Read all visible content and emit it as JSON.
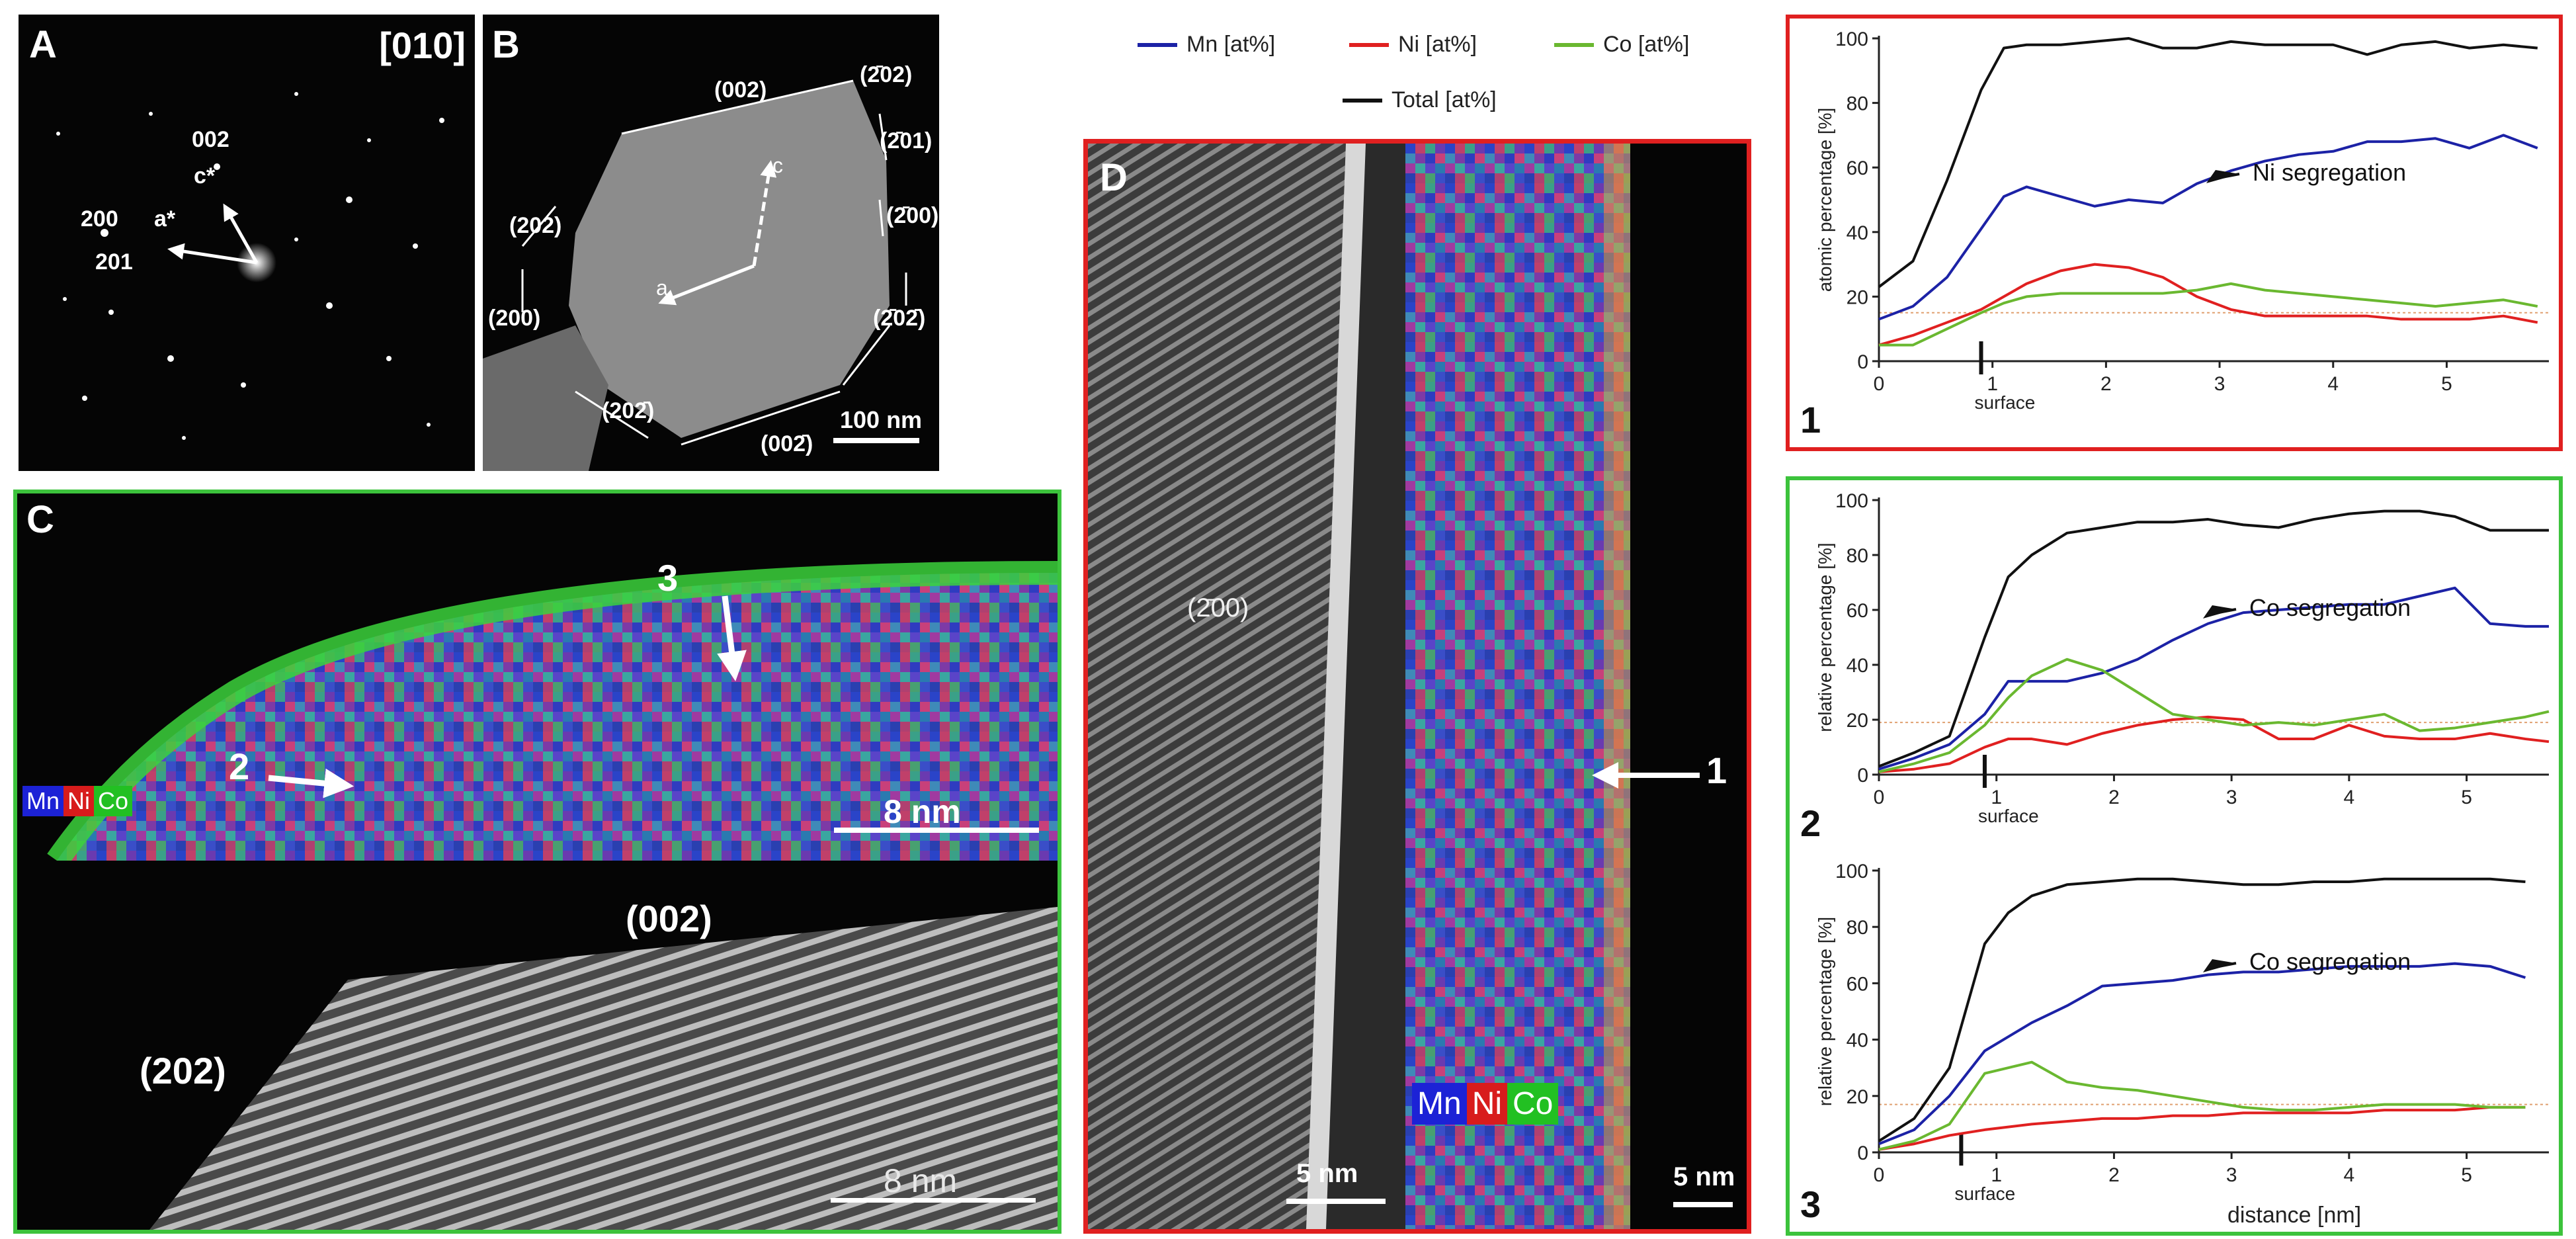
{
  "panel_a": {
    "label": "A",
    "zone_axis": "[010]",
    "spots": {
      "s002": "002",
      "s200": "200",
      "s201": "201"
    },
    "vectors": {
      "c_star": "c*",
      "a_star": "a*"
    }
  },
  "panel_b": {
    "label": "B",
    "facets": {
      "f002": "(002)",
      "f_202": "(2̄02)",
      "f_201": "(2̄01)",
      "f_200": "(2̄00)",
      "f_20_2": "(2̄02̄)",
      "f00_2": "(002̄)",
      "f20_2": "(202̄)",
      "f200": "(200)",
      "f202": "(202)"
    },
    "axes": {
      "a": "a",
      "c": "c"
    },
    "scalebar": "100 nm"
  },
  "panel_c": {
    "label": "C",
    "legend": {
      "mn": "Mn",
      "ni": "Ni",
      "co": "Co"
    },
    "markers": {
      "m2": "2",
      "m3": "3"
    },
    "scalebar_top": "8 nm",
    "facet_002": "(002)",
    "facet_202": "(202)",
    "scalebar_bottom": "8 nm"
  },
  "panel_d": {
    "label": "D",
    "facet": "(2̄00)",
    "scalebar_left": "5 nm",
    "marker": "1",
    "legend": {
      "mn": "Mn",
      "ni": "Ni",
      "co": "Co"
    },
    "scalebar_right": "5 nm"
  },
  "legend": {
    "mn": "Mn [at%]",
    "ni": "Ni [at%]",
    "co": "Co [at%]",
    "total": "Total [at%]"
  },
  "colors": {
    "mn": "#1c22a6",
    "ni": "#e02020",
    "co": "#6ab830",
    "total": "#111111",
    "red_frame": "#e02020",
    "green_frame": "#3cc33c"
  },
  "chart_data": [
    {
      "id": "1",
      "type": "line",
      "ylabel": "atomic percentage [%]",
      "xlabel": "",
      "annotation": "Ni segregation",
      "surface_label": "surface",
      "surface_x": 0.9,
      "xlim": [
        0,
        5.9
      ],
      "ylim": [
        0,
        100
      ],
      "xticks": [
        0,
        1,
        2,
        3,
        4,
        5
      ],
      "yticks": [
        0,
        20,
        40,
        60,
        80,
        100
      ],
      "reference_level": 15,
      "x": [
        0,
        0.3,
        0.6,
        0.9,
        1.1,
        1.3,
        1.6,
        1.9,
        2.2,
        2.5,
        2.8,
        3.1,
        3.4,
        3.7,
        4.0,
        4.3,
        4.6,
        4.9,
        5.2,
        5.5,
        5.8
      ],
      "series": [
        {
          "name": "Mn",
          "color": "mn",
          "values": [
            13,
            17,
            26,
            41,
            51,
            54,
            51,
            48,
            50,
            49,
            55,
            59,
            62,
            64,
            65,
            68,
            68,
            69,
            66,
            70,
            66
          ]
        },
        {
          "name": "Ni",
          "color": "ni",
          "values": [
            5,
            8,
            12,
            16,
            20,
            24,
            28,
            30,
            29,
            26,
            20,
            16,
            14,
            14,
            14,
            14,
            13,
            13,
            13,
            14,
            12
          ]
        },
        {
          "name": "Co",
          "color": "co",
          "values": [
            5,
            5,
            10,
            15,
            18,
            20,
            21,
            21,
            21,
            21,
            22,
            24,
            22,
            21,
            20,
            19,
            18,
            17,
            18,
            19,
            17
          ]
        },
        {
          "name": "Total",
          "color": "total",
          "values": [
            23,
            31,
            56,
            84,
            97,
            98,
            98,
            99,
            100,
            97,
            97,
            99,
            98,
            98,
            98,
            95,
            98,
            99,
            97,
            98,
            97
          ]
        }
      ]
    },
    {
      "id": "2",
      "type": "line",
      "ylabel": "relative percentage [%]",
      "xlabel": "",
      "annotation": "Co segregation",
      "surface_label": "surface",
      "surface_x": 0.9,
      "xlim": [
        0,
        5.7
      ],
      "ylim": [
        0,
        100
      ],
      "xticks": [
        0,
        1,
        2,
        3,
        4,
        5
      ],
      "yticks": [
        0,
        20,
        40,
        60,
        80,
        100
      ],
      "reference_level": 19,
      "x": [
        0,
        0.3,
        0.6,
        0.9,
        1.1,
        1.3,
        1.6,
        1.9,
        2.2,
        2.5,
        2.8,
        3.1,
        3.4,
        3.7,
        4.0,
        4.3,
        4.6,
        4.9,
        5.2,
        5.5,
        5.7
      ],
      "series": [
        {
          "name": "Mn",
          "color": "mn",
          "values": [
            2,
            6,
            11,
            22,
            34,
            34,
            34,
            37,
            42,
            49,
            55,
            59,
            60,
            61,
            62,
            62,
            65,
            68,
            55,
            54,
            54
          ]
        },
        {
          "name": "Ni",
          "color": "ni",
          "values": [
            1,
            2,
            4,
            10,
            13,
            13,
            11,
            15,
            18,
            20,
            21,
            20,
            13,
            13,
            18,
            14,
            13,
            13,
            15,
            13,
            12
          ]
        },
        {
          "name": "Co",
          "color": "co",
          "values": [
            1,
            4,
            8,
            18,
            28,
            36,
            42,
            38,
            30,
            22,
            20,
            18,
            19,
            18,
            20,
            22,
            16,
            17,
            19,
            21,
            23
          ]
        },
        {
          "name": "Total",
          "color": "total",
          "values": [
            3,
            8,
            14,
            50,
            72,
            80,
            88,
            90,
            92,
            92,
            93,
            91,
            90,
            93,
            95,
            96,
            96,
            94,
            89,
            89,
            89
          ]
        }
      ]
    },
    {
      "id": "3",
      "type": "line",
      "ylabel": "relative percentage [%]",
      "xlabel": "distance [nm]",
      "annotation": "Co segregation",
      "surface_label": "surface",
      "surface_x": 0.7,
      "xlim": [
        0,
        5.7
      ],
      "ylim": [
        0,
        100
      ],
      "xticks": [
        0,
        1,
        2,
        3,
        4,
        5
      ],
      "yticks": [
        0,
        20,
        40,
        60,
        80,
        100
      ],
      "reference_level": 17,
      "x": [
        0,
        0.3,
        0.6,
        0.9,
        1.1,
        1.3,
        1.6,
        1.9,
        2.2,
        2.5,
        2.8,
        3.1,
        3.4,
        3.7,
        4.0,
        4.3,
        4.6,
        4.9,
        5.2,
        5.5
      ],
      "series": [
        {
          "name": "Mn",
          "color": "mn",
          "values": [
            3,
            8,
            20,
            36,
            41,
            46,
            52,
            59,
            60,
            61,
            63,
            64,
            64,
            65,
            66,
            66,
            66,
            67,
            66,
            62
          ]
        },
        {
          "name": "Ni",
          "color": "ni",
          "values": [
            1,
            3,
            6,
            8,
            9,
            10,
            11,
            12,
            12,
            13,
            13,
            14,
            14,
            14,
            14,
            15,
            15,
            15,
            16,
            16
          ]
        },
        {
          "name": "Co",
          "color": "co",
          "values": [
            1,
            4,
            10,
            28,
            30,
            32,
            25,
            23,
            22,
            20,
            18,
            16,
            15,
            15,
            16,
            17,
            17,
            17,
            16,
            16
          ]
        },
        {
          "name": "Total",
          "color": "total",
          "values": [
            4,
            12,
            30,
            74,
            85,
            91,
            95,
            96,
            97,
            97,
            96,
            95,
            95,
            96,
            96,
            97,
            97,
            97,
            97,
            96
          ]
        }
      ]
    }
  ]
}
